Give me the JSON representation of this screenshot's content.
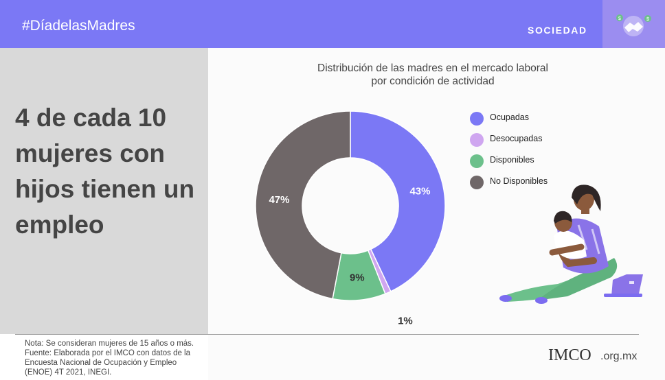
{
  "header": {
    "hashtag": "#DíadelasMadres",
    "section": "SOCIEDAD",
    "badge_icon": "handshake-money-icon"
  },
  "headline": "4 de cada 10 mujeres con hijos tienen un empleo",
  "chart_data": {
    "type": "pie",
    "style": "donut",
    "title_lines": [
      "Distribución de las madres en el mercado laboral",
      "por condición de actividad"
    ],
    "categories": [
      "Ocupadas",
      "Desocupadas",
      "Disponibles",
      "No Disponibles"
    ],
    "values": [
      43,
      1,
      9,
      47
    ],
    "labels": [
      "43%",
      "1%",
      "9%",
      "47%"
    ],
    "unit": "%",
    "colors": [
      "#7b78f5",
      "#cfa6f0",
      "#6cc08b",
      "#6f6768"
    ],
    "legend_position": "right"
  },
  "note": {
    "lines": [
      "Nota: Se consideran mujeres de 15 años o más.",
      "Fuente: Elaborada por el IMCO con datos de la",
      "Encuesta Nacional de Ocupación y Empleo",
      "(ENOE) 4T 2021, INEGI."
    ]
  },
  "logo": {
    "main": "IMCO",
    "suffix": ".org.mx"
  },
  "illustration": "mother-holding-baby-with-laptop"
}
